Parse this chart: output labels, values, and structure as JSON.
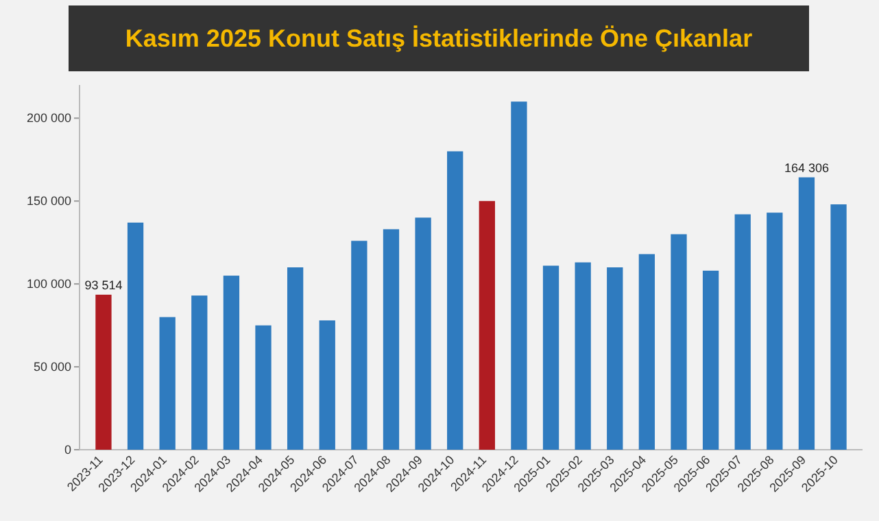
{
  "chart_data": {
    "type": "bar",
    "title": "Kasım 2025 Konut Satış İstatistiklerinde Öne Çıkanlar",
    "categories": [
      "2023-11",
      "2023-12",
      "2024-01",
      "2024-02",
      "2024-03",
      "2024-04",
      "2024-05",
      "2024-06",
      "2024-07",
      "2024-08",
      "2024-09",
      "2024-10",
      "2024-11",
      "2024-12",
      "2025-01",
      "2025-02",
      "2025-03",
      "2025-04",
      "2025-05",
      "2025-06",
      "2025-07",
      "2025-08",
      "2025-09",
      "2025-10"
    ],
    "values": [
      93514,
      137000,
      80000,
      93000,
      105000,
      75000,
      110000,
      78000,
      126000,
      133000,
      140000,
      180000,
      150000,
      210000,
      111000,
      113000,
      110000,
      118000,
      130000,
      108000,
      142000,
      143000,
      164306,
      148000
    ],
    "colors": [
      "#b01c22",
      "#2f7bbf",
      "#2f7bbf",
      "#2f7bbf",
      "#2f7bbf",
      "#2f7bbf",
      "#2f7bbf",
      "#2f7bbf",
      "#2f7bbf",
      "#2f7bbf",
      "#2f7bbf",
      "#2f7bbf",
      "#b01c22",
      "#2f7bbf",
      "#2f7bbf",
      "#2f7bbf",
      "#2f7bbf",
      "#2f7bbf",
      "#2f7bbf",
      "#2f7bbf",
      "#2f7bbf",
      "#2f7bbf",
      "#2f7bbf",
      "#2f7bbf"
    ],
    "value_labels": [
      "93 514",
      null,
      null,
      null,
      null,
      null,
      null,
      null,
      null,
      null,
      null,
      null,
      null,
      null,
      null,
      null,
      null,
      null,
      null,
      null,
      null,
      null,
      "164 306",
      null
    ],
    "ylim": [
      0,
      220000
    ],
    "yticks": [
      0,
      {
        "value": 50000,
        "label": "50 000"
      },
      {
        "value": 100000,
        "label": "100 000"
      },
      {
        "value": 150000,
        "label": "150 000"
      },
      {
        "value": 200000,
        "label": "200 000"
      }
    ]
  }
}
